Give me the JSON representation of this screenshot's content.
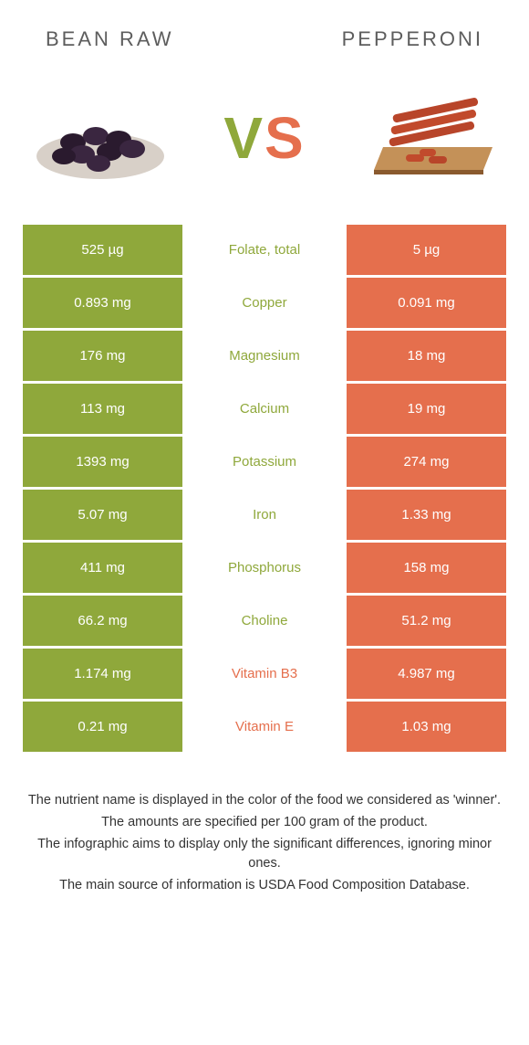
{
  "header": {
    "left_title": "BEAN RAW",
    "right_title": "PEPPERONI"
  },
  "vs": {
    "v": "V",
    "s": "S"
  },
  "colors": {
    "green": "#8fa83b",
    "orange": "#e56f4d",
    "text": "#333333"
  },
  "rows": [
    {
      "left": "525 µg",
      "label": "Folate, total",
      "right": "5 µg",
      "winner": "green"
    },
    {
      "left": "0.893 mg",
      "label": "Copper",
      "right": "0.091 mg",
      "winner": "green"
    },
    {
      "left": "176 mg",
      "label": "Magnesium",
      "right": "18 mg",
      "winner": "green"
    },
    {
      "left": "113 mg",
      "label": "Calcium",
      "right": "19 mg",
      "winner": "green"
    },
    {
      "left": "1393 mg",
      "label": "Potassium",
      "right": "274 mg",
      "winner": "green"
    },
    {
      "left": "5.07 mg",
      "label": "Iron",
      "right": "1.33 mg",
      "winner": "green"
    },
    {
      "left": "411 mg",
      "label": "Phosphorus",
      "right": "158 mg",
      "winner": "green"
    },
    {
      "left": "66.2 mg",
      "label": "Choline",
      "right": "51.2 mg",
      "winner": "green"
    },
    {
      "left": "1.174 mg",
      "label": "Vitamin B3",
      "right": "4.987 mg",
      "winner": "orange"
    },
    {
      "left": "0.21 mg",
      "label": "Vitamin E",
      "right": "1.03 mg",
      "winner": "orange"
    }
  ],
  "footer": {
    "line1": "The nutrient name is displayed in the color of the food we considered as 'winner'.",
    "line2": "The amounts are specified per 100 gram of the product.",
    "line3": "The infographic aims to display only the significant differences, ignoring minor ones.",
    "line4": "The main source of information is USDA Food Composition Database."
  }
}
